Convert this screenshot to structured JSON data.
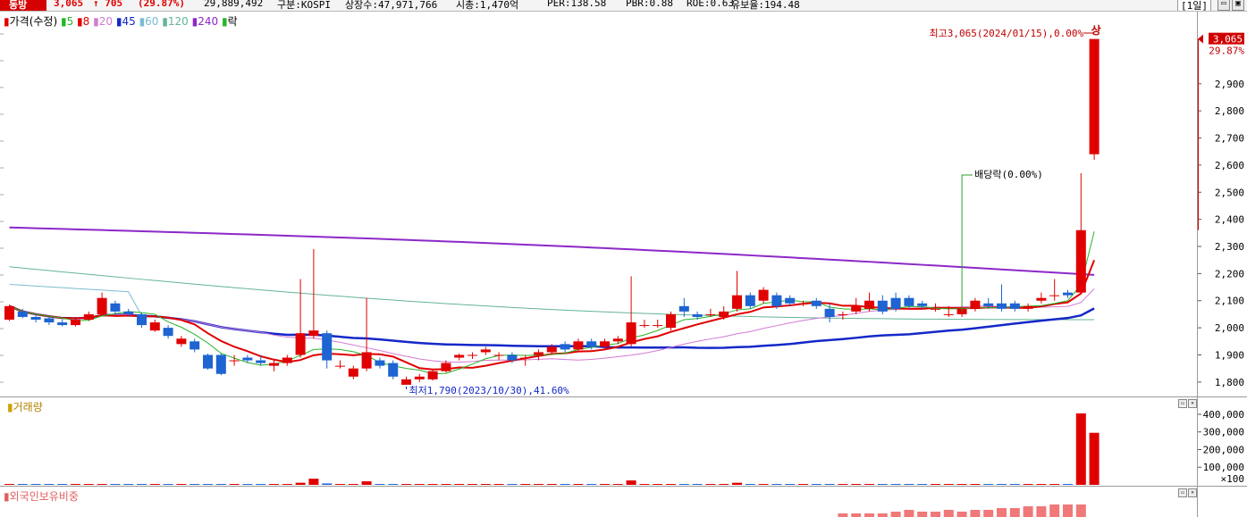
{
  "header": {
    "stock_name": "동방",
    "price": "3,065",
    "change": "↑ 705",
    "change_pct": "(29.87%)",
    "volume": "29,889,492",
    "market": "구분:KOSPI",
    "listed_shares": "상장수:47,971,766",
    "market_cap": "시총:1,470억",
    "per": "PER:138.58",
    "pbr": "PBR:0.88",
    "roe": "ROE:0.63",
    "turnover": "유보율:194.48",
    "period": "[1일]"
  },
  "price_panel": {
    "legend": {
      "price": "가격(수정)",
      "ma5": "5",
      "ma8": "8",
      "ma20": "20",
      "ma45": "45",
      "ma60": "60",
      "ma120": "120",
      "ma240": "240",
      "ex": "락"
    },
    "annotation_high": "최고3,065(2024/01/15),0.00%",
    "upper_limit": "상",
    "annotation_low": "최저1,790(2023/10/30),41.60%",
    "annotation_dividend": "배당락(0.00%)",
    "current_price_tag": "3,065",
    "current_pct_tag": "29.87%",
    "y_ticks": [
      "2,900",
      "2,800",
      "2,700",
      "2,600",
      "2,500",
      "2,400",
      "2,300",
      "2,200",
      "2,100",
      "2,000",
      "1,900",
      "1,800"
    ]
  },
  "volume_panel": {
    "title": "거래량",
    "y_ticks": [
      "400,000",
      "300,000",
      "200,000",
      "100,000",
      "×100"
    ]
  },
  "foreign_panel": {
    "title": "외국인보유비중"
  },
  "colors": {
    "up": "#e00000",
    "down": "#1e64d2",
    "ma5": "#28b428",
    "ma8": "#e00000",
    "ma20": "#d27ad2",
    "ma45": "#1428c8",
    "ma60": "#7abcd2",
    "ma120": "#64b496",
    "ma240": "#8c28c8",
    "foreign": "#f07878"
  },
  "chart_data": {
    "type": "candlestick",
    "y_range": [
      1760,
      3110
    ],
    "candles": [
      {
        "o": 2030,
        "c": 2080,
        "h": 2085,
        "l": 2025
      },
      {
        "o": 2060,
        "c": 2040,
        "h": 2070,
        "l": 2035
      },
      {
        "o": 2040,
        "c": 2030,
        "h": 2050,
        "l": 2020
      },
      {
        "o": 2035,
        "c": 2020,
        "h": 2040,
        "l": 2010
      },
      {
        "o": 2020,
        "c": 2010,
        "h": 2030,
        "l": 2005
      },
      {
        "o": 2010,
        "c": 2030,
        "h": 2040,
        "l": 2005
      },
      {
        "o": 2030,
        "c": 2050,
        "h": 2060,
        "l": 2025
      },
      {
        "o": 2050,
        "c": 2110,
        "h": 2130,
        "l": 2045
      },
      {
        "o": 2090,
        "c": 2060,
        "h": 2100,
        "l": 2050
      },
      {
        "o": 2060,
        "c": 2050,
        "h": 2070,
        "l": 2040
      },
      {
        "o": 2050,
        "c": 2010,
        "h": 2055,
        "l": 2000
      },
      {
        "o": 1990,
        "c": 2020,
        "h": 2030,
        "l": 1985
      },
      {
        "o": 2000,
        "c": 1970,
        "h": 2010,
        "l": 1960
      },
      {
        "o": 1940,
        "c": 1960,
        "h": 1970,
        "l": 1930
      },
      {
        "o": 1950,
        "c": 1920,
        "h": 1960,
        "l": 1910
      },
      {
        "o": 1900,
        "c": 1850,
        "h": 1905,
        "l": 1845
      },
      {
        "o": 1900,
        "c": 1830,
        "h": 1905,
        "l": 1825
      },
      {
        "o": 1880,
        "c": 1880,
        "h": 1900,
        "l": 1860
      },
      {
        "o": 1890,
        "c": 1880,
        "h": 1900,
        "l": 1870
      },
      {
        "o": 1880,
        "c": 1870,
        "h": 1900,
        "l": 1860
      },
      {
        "o": 1860,
        "c": 1870,
        "h": 1880,
        "l": 1840
      },
      {
        "o": 1870,
        "c": 1890,
        "h": 1900,
        "l": 1860
      },
      {
        "o": 1900,
        "c": 1980,
        "h": 2180,
        "l": 1890
      },
      {
        "o": 1970,
        "c": 1990,
        "h": 2290,
        "l": 1960
      },
      {
        "o": 1980,
        "c": 1880,
        "h": 1990,
        "l": 1850
      },
      {
        "o": 1860,
        "c": 1860,
        "h": 1880,
        "l": 1850
      },
      {
        "o": 1820,
        "c": 1850,
        "h": 1860,
        "l": 1810
      },
      {
        "o": 1850,
        "c": 1910,
        "h": 2110,
        "l": 1840
      },
      {
        "o": 1880,
        "c": 1860,
        "h": 1890,
        "l": 1850
      },
      {
        "o": 1870,
        "c": 1820,
        "h": 1880,
        "l": 1810
      },
      {
        "o": 1790,
        "c": 1810,
        "h": 1820,
        "l": 1790
      },
      {
        "o": 1810,
        "c": 1820,
        "h": 1830,
        "l": 1800
      },
      {
        "o": 1810,
        "c": 1840,
        "h": 1845,
        "l": 1805
      },
      {
        "o": 1840,
        "c": 1870,
        "h": 1880,
        "l": 1835
      },
      {
        "o": 1890,
        "c": 1900,
        "h": 1905,
        "l": 1880
      },
      {
        "o": 1900,
        "c": 1900,
        "h": 1910,
        "l": 1885
      },
      {
        "o": 1910,
        "c": 1920,
        "h": 1930,
        "l": 1900
      },
      {
        "o": 1900,
        "c": 1900,
        "h": 1910,
        "l": 1880
      },
      {
        "o": 1900,
        "c": 1880,
        "h": 1910,
        "l": 1870
      },
      {
        "o": 1890,
        "c": 1890,
        "h": 1900,
        "l": 1860
      },
      {
        "o": 1900,
        "c": 1910,
        "h": 1920,
        "l": 1880
      },
      {
        "o": 1910,
        "c": 1930,
        "h": 1940,
        "l": 1900
      },
      {
        "o": 1940,
        "c": 1920,
        "h": 1950,
        "l": 1910
      },
      {
        "o": 1920,
        "c": 1950,
        "h": 1960,
        "l": 1910
      },
      {
        "o": 1950,
        "c": 1930,
        "h": 1960,
        "l": 1920
      },
      {
        "o": 1930,
        "c": 1950,
        "h": 1960,
        "l": 1920
      },
      {
        "o": 1950,
        "c": 1960,
        "h": 1970,
        "l": 1940
      },
      {
        "o": 1940,
        "c": 2020,
        "h": 2190,
        "l": 1930
      },
      {
        "o": 2010,
        "c": 2010,
        "h": 2030,
        "l": 2000
      },
      {
        "o": 2010,
        "c": 2010,
        "h": 2030,
        "l": 2000
      },
      {
        "o": 2000,
        "c": 2050,
        "h": 2060,
        "l": 1990
      },
      {
        "o": 2080,
        "c": 2060,
        "h": 2110,
        "l": 2040
      },
      {
        "o": 2050,
        "c": 2040,
        "h": 2060,
        "l": 2030
      },
      {
        "o": 2050,
        "c": 2050,
        "h": 2070,
        "l": 2040
      },
      {
        "o": 2040,
        "c": 2060,
        "h": 2080,
        "l": 2030
      },
      {
        "o": 2070,
        "c": 2120,
        "h": 2210,
        "l": 2060
      },
      {
        "o": 2120,
        "c": 2080,
        "h": 2130,
        "l": 2070
      },
      {
        "o": 2100,
        "c": 2140,
        "h": 2150,
        "l": 2090
      },
      {
        "o": 2120,
        "c": 2080,
        "h": 2130,
        "l": 2070
      },
      {
        "o": 2110,
        "c": 2090,
        "h": 2120,
        "l": 2080
      },
      {
        "o": 2090,
        "c": 2090,
        "h": 2100,
        "l": 2080
      },
      {
        "o": 2100,
        "c": 2080,
        "h": 2110,
        "l": 2070
      },
      {
        "o": 2070,
        "c": 2040,
        "h": 2090,
        "l": 2020
      },
      {
        "o": 2050,
        "c": 2050,
        "h": 2060,
        "l": 2030
      },
      {
        "o": 2060,
        "c": 2080,
        "h": 2110,
        "l": 2050
      },
      {
        "o": 2070,
        "c": 2100,
        "h": 2130,
        "l": 2060
      },
      {
        "o": 2100,
        "c": 2060,
        "h": 2120,
        "l": 2050
      },
      {
        "o": 2110,
        "c": 2070,
        "h": 2130,
        "l": 2060
      },
      {
        "o": 2110,
        "c": 2080,
        "h": 2120,
        "l": 2070
      },
      {
        "o": 2090,
        "c": 2080,
        "h": 2100,
        "l": 2070
      },
      {
        "o": 2070,
        "c": 2070,
        "h": 2090,
        "l": 2060
      },
      {
        "o": 2050,
        "c": 2050,
        "h": 2080,
        "l": 2040
      },
      {
        "o": 2050,
        "c": 2070,
        "h": 2080,
        "l": 2040
      },
      {
        "o": 2070,
        "c": 2100,
        "h": 2110,
        "l": 2060
      },
      {
        "o": 2090,
        "c": 2080,
        "h": 2110,
        "l": 2070
      },
      {
        "o": 2090,
        "c": 2070,
        "h": 2160,
        "l": 2060
      },
      {
        "o": 2090,
        "c": 2070,
        "h": 2100,
        "l": 2060
      },
      {
        "o": 2070,
        "c": 2080,
        "h": 2090,
        "l": 2060
      },
      {
        "o": 2100,
        "c": 2110,
        "h": 2130,
        "l": 2090
      },
      {
        "o": 2120,
        "c": 2120,
        "h": 2180,
        "l": 2100
      },
      {
        "o": 2130,
        "c": 2120,
        "h": 2140,
        "l": 2110
      },
      {
        "o": 2130,
        "c": 2360,
        "h": 2570,
        "l": 2130
      },
      {
        "o": 2640,
        "c": 3065,
        "h": 3065,
        "l": 2620
      }
    ],
    "volume": [
      5,
      5,
      5,
      5,
      5,
      5,
      5,
      5,
      5,
      5,
      5,
      5,
      5,
      5,
      5,
      5,
      5,
      5,
      5,
      5,
      5,
      5,
      12,
      35,
      8,
      5,
      5,
      20,
      5,
      5,
      5,
      5,
      5,
      5,
      5,
      5,
      5,
      5,
      5,
      5,
      5,
      5,
      5,
      5,
      5,
      5,
      5,
      25,
      5,
      5,
      5,
      5,
      5,
      5,
      5,
      12,
      5,
      5,
      5,
      5,
      5,
      5,
      5,
      5,
      5,
      5,
      5,
      5,
      5,
      5,
      5,
      5,
      5,
      5,
      5,
      5,
      5,
      5,
      5,
      5,
      5,
      405,
      295
    ],
    "foreign_ratio": [
      0,
      0,
      0,
      0,
      0,
      0,
      0,
      0,
      0,
      0,
      0,
      0,
      0,
      0,
      0,
      0,
      0,
      0,
      0,
      0,
      0,
      0,
      0,
      0,
      0,
      0,
      0,
      0,
      0,
      0,
      0,
      0,
      0,
      0,
      0,
      0,
      0,
      0,
      0,
      0,
      0,
      0,
      0,
      0,
      0,
      0,
      0,
      0,
      0,
      0,
      0,
      0,
      0,
      0,
      0,
      0,
      0,
      0,
      0,
      0,
      0,
      0,
      0,
      1,
      1,
      1,
      1,
      2,
      3,
      2,
      2,
      3,
      2,
      3,
      3,
      4,
      4,
      5,
      5,
      6,
      6,
      6,
      0
    ]
  }
}
